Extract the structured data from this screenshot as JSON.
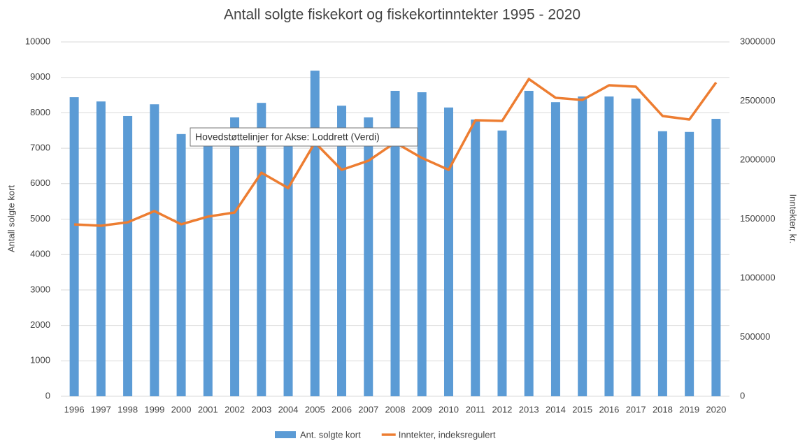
{
  "chart_data": {
    "type": "bar",
    "title": "Antall solgte fiskekort og fiskekortinntekter 1995 - 2020",
    "y_label": "Antall solgte kort",
    "y2_label": "Inntekter, kr.",
    "annotation": "Hovedstøttelinjer for Akse: Loddrett (Verdi)",
    "categories": [
      "1996",
      "1997",
      "1998",
      "1999",
      "2000",
      "2001",
      "2002",
      "2003",
      "2004",
      "2005",
      "2006",
      "2007",
      "2008",
      "2009",
      "2010",
      "2011",
      "2012",
      "2013",
      "2014",
      "2015",
      "2016",
      "2017",
      "2018",
      "2019",
      "2020"
    ],
    "series": [
      {
        "name": "Ant. solgte kort",
        "type": "bar",
        "color": "#5b9bd5",
        "values": [
          8440,
          8320,
          7910,
          8240,
          7400,
          7100,
          7870,
          8280,
          7200,
          9190,
          8200,
          7870,
          8620,
          8580,
          8150,
          7810,
          7500,
          8620,
          8300,
          8460,
          8460,
          8400,
          7480,
          7460,
          7830
        ]
      },
      {
        "name": "Inntekter, indeksregulert",
        "type": "line",
        "axis": "y2",
        "color": "#ed7d31",
        "values": [
          1455000,
          1444000,
          1473000,
          1568000,
          1456000,
          1521000,
          1556000,
          1893000,
          1763000,
          2148000,
          1917000,
          1994000,
          2148000,
          2018000,
          1917000,
          2337000,
          2331000,
          2686000,
          2527000,
          2509000,
          2633000,
          2621000,
          2373000,
          2343000,
          2657000
        ]
      }
    ],
    "ylim": [
      0,
      10000
    ],
    "yticks": [
      0,
      1000,
      2000,
      3000,
      4000,
      5000,
      6000,
      7000,
      8000,
      9000,
      10000
    ],
    "y2lim": [
      0,
      3000000
    ],
    "y2ticks": [
      0,
      500000,
      1000000,
      1500000,
      2000000,
      2500000,
      3000000
    ],
    "grid": true,
    "legend": "bottom"
  }
}
